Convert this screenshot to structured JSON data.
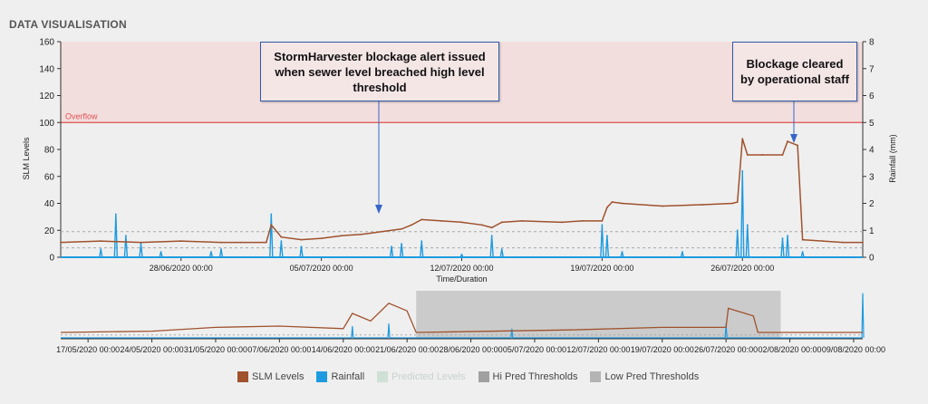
{
  "panel_title": "DATA VISUALISATION",
  "annotations": {
    "alert": "StormHarvester blockage alert issued when sewer level breached high level threshold",
    "cleared": "Blockage cleared by operational staff"
  },
  "colors": {
    "slm": "#a0522d",
    "rainfall": "#1e9be0",
    "overflow": "#e05050",
    "overflow_fill": "#f3dede",
    "threshold": "#a8a8a8",
    "nav_window": "#c4c4c4"
  },
  "legend": [
    {
      "label": "SLM Levels",
      "color": "#a0522d",
      "faded": false
    },
    {
      "label": "Rainfall",
      "color": "#1e9be0",
      "faded": false
    },
    {
      "label": "Predicted Levels",
      "color": "#cfe0d6",
      "faded": true
    },
    {
      "label": "Hi Pred Thresholds",
      "color": "#a0a0a0",
      "faded": false
    },
    {
      "label": "Low Pred Thresholds",
      "color": "#b4b4b4",
      "faded": false
    }
  ],
  "chart_data": [
    {
      "type": "line",
      "xlabel": "Time/Duration",
      "ylabel": "SLM Levels",
      "y2label": "Rainfall (mm)",
      "ylim": [
        0,
        160
      ],
      "y2lim": [
        0,
        8
      ],
      "yticks": [
        0,
        20,
        40,
        60,
        80,
        100,
        120,
        140,
        160
      ],
      "y2ticks": [
        0,
        1,
        2,
        3,
        4,
        5,
        6,
        7,
        8
      ],
      "xlim": [
        "2020-06-22T00:00",
        "2020-08-01T00:00"
      ],
      "xticks": [
        {
          "x": "2020-06-28T00:00",
          "label": "28/06/2020 00:00"
        },
        {
          "x": "2020-07-05T00:00",
          "label": "05/07/2020 00:00"
        },
        {
          "x": "2020-07-12T00:00",
          "label": "12/07/2020 00:00"
        },
        {
          "x": "2020-07-19T00:00",
          "label": "19/07/2020 00:00"
        },
        {
          "x": "2020-07-26T00:00",
          "label": "26/07/2020 00:00"
        }
      ],
      "overflow": {
        "value": 100,
        "label": "Overflow"
      },
      "series": [
        {
          "name": "SLM Levels",
          "axis": "left",
          "points": [
            [
              "2020-06-22T00:00",
              11
            ],
            [
              "2020-06-24T00:00",
              12
            ],
            [
              "2020-06-26T00:00",
              11
            ],
            [
              "2020-06-28T00:00",
              12
            ],
            [
              "2020-06-30T00:00",
              11
            ],
            [
              "2020-07-01T00:00",
              11
            ],
            [
              "2020-07-02T06:00",
              11
            ],
            [
              "2020-07-02T12:00",
              24
            ],
            [
              "2020-07-03T00:00",
              15
            ],
            [
              "2020-07-04T00:00",
              13
            ],
            [
              "2020-07-05T00:00",
              14
            ],
            [
              "2020-07-06T00:00",
              16
            ],
            [
              "2020-07-07T00:00",
              17
            ],
            [
              "2020-07-08T00:00",
              19
            ],
            [
              "2020-07-09T00:00",
              21
            ],
            [
              "2020-07-09T12:00",
              24
            ],
            [
              "2020-07-10T00:00",
              28
            ],
            [
              "2020-07-11T00:00",
              27
            ],
            [
              "2020-07-12T00:00",
              26
            ],
            [
              "2020-07-13T00:00",
              24
            ],
            [
              "2020-07-13T12:00",
              22
            ],
            [
              "2020-07-14T00:00",
              26
            ],
            [
              "2020-07-15T00:00",
              27
            ],
            [
              "2020-07-17T00:00",
              26
            ],
            [
              "2020-07-18T00:00",
              27
            ],
            [
              "2020-07-19T00:00",
              27
            ],
            [
              "2020-07-19T06:00",
              37
            ],
            [
              "2020-07-19T12:00",
              41
            ],
            [
              "2020-07-20T00:00",
              40
            ],
            [
              "2020-07-22T00:00",
              38
            ],
            [
              "2020-07-24T00:00",
              39
            ],
            [
              "2020-07-25T12:00",
              40
            ],
            [
              "2020-07-25T18:00",
              41
            ],
            [
              "2020-07-26T00:00",
              88
            ],
            [
              "2020-07-26T06:00",
              76
            ],
            [
              "2020-07-27T00:00",
              76
            ],
            [
              "2020-07-28T00:00",
              76
            ],
            [
              "2020-07-28T06:00",
              86
            ],
            [
              "2020-07-28T18:00",
              83
            ],
            [
              "2020-07-29T00:00",
              13
            ],
            [
              "2020-07-30T00:00",
              12
            ],
            [
              "2020-07-31T00:00",
              11
            ],
            [
              "2020-08-01T00:00",
              11
            ]
          ]
        },
        {
          "name": "Rainfall",
          "axis": "right",
          "points": [
            [
              "2020-06-24T00:00",
              0.3
            ],
            [
              "2020-06-24T18:00",
              1.6
            ],
            [
              "2020-06-25T06:00",
              0.8
            ],
            [
              "2020-06-26T00:00",
              0.5
            ],
            [
              "2020-06-27T00:00",
              0.2
            ],
            [
              "2020-06-29T12:00",
              0.2
            ],
            [
              "2020-06-30T00:00",
              0.3
            ],
            [
              "2020-07-02T12:00",
              1.6
            ],
            [
              "2020-07-03T00:00",
              0.6
            ],
            [
              "2020-07-04T00:00",
              0.4
            ],
            [
              "2020-07-08T12:00",
              0.4
            ],
            [
              "2020-07-09T00:00",
              0.5
            ],
            [
              "2020-07-10T00:00",
              0.6
            ],
            [
              "2020-07-12T00:00",
              0.1
            ],
            [
              "2020-07-13T12:00",
              0.8
            ],
            [
              "2020-07-14T00:00",
              0.3
            ],
            [
              "2020-07-19T00:00",
              1.2
            ],
            [
              "2020-07-19T06:00",
              0.8
            ],
            [
              "2020-07-20T00:00",
              0.2
            ],
            [
              "2020-07-23T00:00",
              0.2
            ],
            [
              "2020-07-25T18:00",
              1.0
            ],
            [
              "2020-07-26T00:00",
              3.2
            ],
            [
              "2020-07-26T06:00",
              1.2
            ],
            [
              "2020-07-28T00:00",
              0.7
            ],
            [
              "2020-07-28T06:00",
              0.8
            ],
            [
              "2020-07-29T00:00",
              0.2
            ]
          ]
        },
        {
          "name": "Hi Pred Thresholds",
          "axis": "left",
          "value": 19
        },
        {
          "name": "Low Pred Thresholds",
          "axis": "left",
          "value": 7
        }
      ]
    },
    {
      "type": "line",
      "xlim": [
        "2020-05-14T00:00",
        "2020-08-10T00:00"
      ],
      "xticks": [
        {
          "x": "2020-05-17T00:00",
          "label": "17/05/2020 00:00"
        },
        {
          "x": "2020-05-24T00:00",
          "label": "24/05/2020 00:00"
        },
        {
          "x": "2020-05-31T00:00",
          "label": "31/05/2020 00:00"
        },
        {
          "x": "2020-06-07T00:00",
          "label": "07/06/2020 00:00"
        },
        {
          "x": "2020-06-14T00:00",
          "label": "14/06/2020 00:00"
        },
        {
          "x": "2020-06-21T00:00",
          "label": "21/06/2020 00:00"
        },
        {
          "x": "2020-06-28T00:00",
          "label": "28/06/2020 00:00"
        },
        {
          "x": "2020-07-05T00:00",
          "label": "05/07/2020 00:00"
        },
        {
          "x": "2020-07-12T00:00",
          "label": "12/07/2020 00:00"
        },
        {
          "x": "2020-07-19T00:00",
          "label": "19/07/2020 00:00"
        },
        {
          "x": "2020-07-26T00:00",
          "label": "26/07/2020 00:00"
        },
        {
          "x": "2020-08-02T00:00",
          "label": "02/08/2020 00:00"
        },
        {
          "x": "2020-08-09T00:00",
          "label": "09/08/2020 00:00"
        }
      ],
      "selection": [
        "2020-06-22T00:00",
        "2020-08-01T00:00"
      ],
      "series": [
        {
          "name": "SLM Levels",
          "points": [
            [
              "2020-05-14T00:00",
              5
            ],
            [
              "2020-05-24T00:00",
              6
            ],
            [
              "2020-05-31T00:00",
              9
            ],
            [
              "2020-06-07T00:00",
              10
            ],
            [
              "2020-06-14T00:00",
              8
            ],
            [
              "2020-06-15T00:00",
              20
            ],
            [
              "2020-06-17T00:00",
              14
            ],
            [
              "2020-06-19T00:00",
              28
            ],
            [
              "2020-06-21T00:00",
              22
            ],
            [
              "2020-06-22T00:00",
              5
            ],
            [
              "2020-07-09T00:00",
              7
            ],
            [
              "2020-07-19T00:00",
              9
            ],
            [
              "2020-07-26T00:00",
              9
            ],
            [
              "2020-07-26T06:00",
              24
            ],
            [
              "2020-07-29T00:00",
              18
            ],
            [
              "2020-07-29T12:00",
              5
            ],
            [
              "2020-08-10T00:00",
              5
            ]
          ]
        },
        {
          "name": "Rainfall",
          "points": [
            [
              "2020-06-15T00:00",
              0.25
            ],
            [
              "2020-06-19T00:00",
              0.3
            ],
            [
              "2020-07-02T12:00",
              0.2
            ],
            [
              "2020-07-26T00:00",
              0.3
            ],
            [
              "2020-08-10T00:00",
              0.9
            ]
          ]
        }
      ]
    }
  ]
}
